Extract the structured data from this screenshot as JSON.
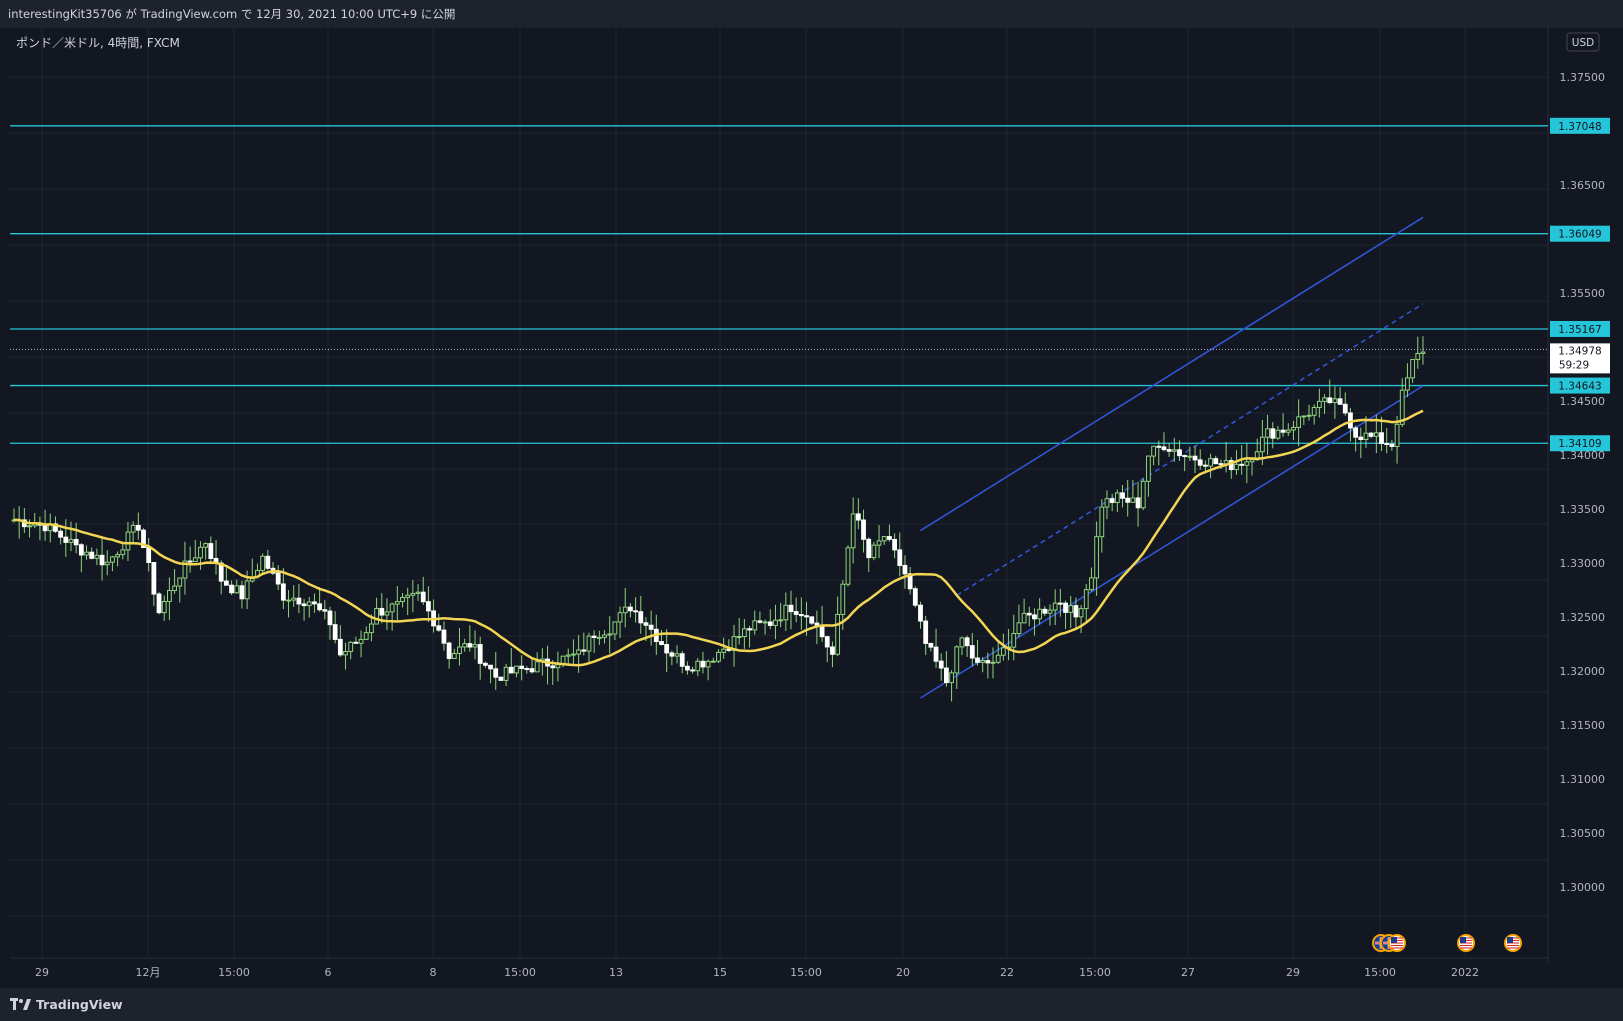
{
  "header": {
    "publish_line": "interestingKit35706 が TradingView.com で 12月 30, 2021 10:00 UTC+9 に公開"
  },
  "symbol_line": "ポンド／米ドル, 4時間, FXCM",
  "currency_badge": "USD",
  "footer": {
    "brand": "TradingView"
  },
  "colors": {
    "background": "#131722",
    "grid": "#1f2430",
    "up_candle": "#ffffff",
    "down_candle": "#ffffff",
    "wick": "#8fd37b",
    "moving_average": "#f2d653",
    "horizontal_levels": "#26c6da",
    "channel": "#2f55d4",
    "current_price_line": "#b2b5be"
  },
  "event_icons": [
    "uk-flag-icon",
    "uk-flag-icon",
    "us-flag-icon",
    "us-flag-icon",
    "us-flag-icon"
  ],
  "chart_data": {
    "type": "candlestick",
    "title": "ポンド／米ドル, 4時間, FXCM",
    "y_range": [
      1.296,
      1.38
    ],
    "y_ticks": [
      "1.37500",
      "1.36500",
      "1.35500",
      "1.34500",
      "1.34000",
      "1.33500",
      "1.33000",
      "1.32500",
      "1.32000",
      "1.31500",
      "1.31000",
      "1.30500",
      "1.30000"
    ],
    "x_ticks": [
      "29",
      "12月",
      "15:00",
      "6",
      "8",
      "15:00",
      "13",
      "15",
      "15:00",
      "20",
      "22",
      "15:00",
      "27",
      "29",
      "15:00",
      "2022"
    ],
    "levels": [
      {
        "value": 1.37048,
        "label": "1.37048"
      },
      {
        "value": 1.36049,
        "label": "1.36049"
      },
      {
        "value": 1.35167,
        "label": "1.35167"
      },
      {
        "value": 1.34643,
        "label": "1.34643"
      },
      {
        "value": 1.34109,
        "label": "1.34109"
      }
    ],
    "current_price": {
      "value": 1.34978,
      "label": "1.34978",
      "countdown": "59:29"
    },
    "channel": {
      "lower_start": {
        "bar": 175,
        "price": 1.3175
      },
      "lower_end": {
        "bar": 272,
        "price": 1.3464
      },
      "upper_start": {
        "bar": 175,
        "price": 1.333
      },
      "upper_end": {
        "bar": 272,
        "price": 1.362
      },
      "mid_start": {
        "bar": 182,
        "price": 1.327
      },
      "mid_end": {
        "bar": 272,
        "price": 1.354
      }
    },
    "anchors": [
      [
        0,
        1.334
      ],
      [
        6,
        1.3335
      ],
      [
        12,
        1.3315
      ],
      [
        18,
        1.33
      ],
      [
        24,
        1.3335
      ],
      [
        28,
        1.3255
      ],
      [
        32,
        1.329
      ],
      [
        37,
        1.332
      ],
      [
        40,
        1.3285
      ],
      [
        44,
        1.327
      ],
      [
        48,
        1.3305
      ],
      [
        52,
        1.327
      ],
      [
        57,
        1.3265
      ],
      [
        61,
        1.3245
      ],
      [
        63,
        1.3215
      ],
      [
        67,
        1.323
      ],
      [
        70,
        1.3255
      ],
      [
        74,
        1.326
      ],
      [
        78,
        1.327
      ],
      [
        82,
        1.324
      ],
      [
        84,
        1.3215
      ],
      [
        88,
        1.3225
      ],
      [
        93,
        1.3195
      ],
      [
        97,
        1.32
      ],
      [
        101,
        1.3205
      ],
      [
        105,
        1.321
      ],
      [
        109,
        1.3215
      ],
      [
        112,
        1.3235
      ],
      [
        115,
        1.324
      ],
      [
        119,
        1.326
      ],
      [
        122,
        1.3245
      ],
      [
        126,
        1.322
      ],
      [
        130,
        1.3205
      ],
      [
        134,
        1.321
      ],
      [
        138,
        1.3225
      ],
      [
        142,
        1.324
      ],
      [
        146,
        1.3245
      ],
      [
        150,
        1.326
      ],
      [
        154,
        1.325
      ],
      [
        158,
        1.3215
      ],
      [
        160,
        1.328
      ],
      [
        162,
        1.335
      ],
      [
        165,
        1.3305
      ],
      [
        168,
        1.3325
      ],
      [
        172,
        1.329
      ],
      [
        176,
        1.3225
      ],
      [
        180,
        1.319
      ],
      [
        183,
        1.323
      ],
      [
        186,
        1.3205
      ],
      [
        190,
        1.321
      ],
      [
        194,
        1.3245
      ],
      [
        198,
        1.3255
      ],
      [
        202,
        1.3265
      ],
      [
        205,
        1.325
      ],
      [
        208,
        1.329
      ],
      [
        210,
        1.3355
      ],
      [
        213,
        1.336
      ],
      [
        217,
        1.3355
      ],
      [
        219,
        1.34
      ],
      [
        222,
        1.341
      ],
      [
        226,
        1.34
      ],
      [
        230,
        1.3395
      ],
      [
        234,
        1.339
      ],
      [
        238,
        1.3395
      ],
      [
        242,
        1.342
      ],
      [
        246,
        1.3425
      ],
      [
        250,
        1.344
      ],
      [
        254,
        1.345
      ],
      [
        257,
        1.344
      ],
      [
        259,
        1.342
      ],
      [
        263,
        1.3415
      ],
      [
        266,
        1.341
      ],
      [
        268,
        1.3455
      ],
      [
        270,
        1.3485
      ],
      [
        272,
        1.3498
      ]
    ]
  }
}
